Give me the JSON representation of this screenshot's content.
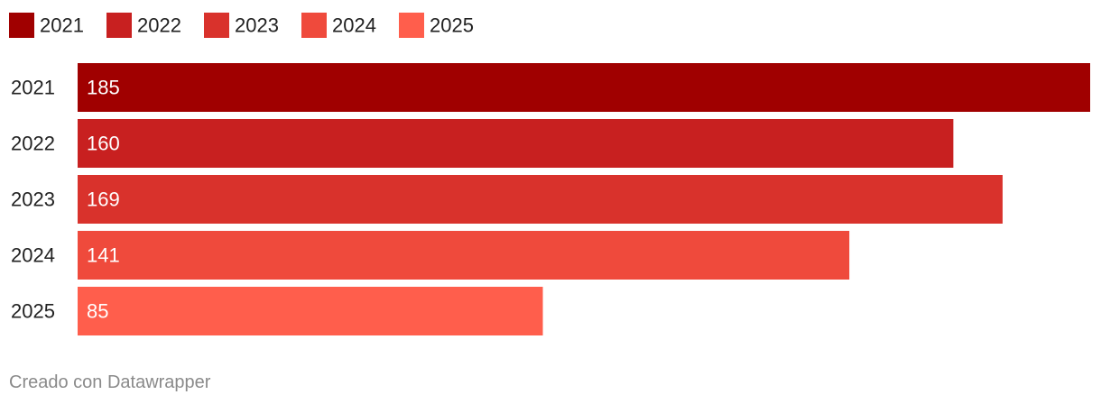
{
  "chart_data": {
    "type": "bar",
    "orientation": "horizontal",
    "categories": [
      "2021",
      "2022",
      "2023",
      "2024",
      "2025"
    ],
    "values": [
      185,
      160,
      169,
      141,
      85
    ],
    "colors": [
      "#a00000",
      "#c82020",
      "#d9322c",
      "#ef4a3c",
      "#ff5e4c"
    ],
    "legend": {
      "placement": "top-left",
      "entries": [
        "2021",
        "2022",
        "2023",
        "2024",
        "2025"
      ]
    },
    "value_labels": "inside-start",
    "grid": false,
    "xlim": [
      0,
      185
    ],
    "title": "",
    "xlabel": "",
    "ylabel": ""
  },
  "footer": {
    "credit": "Creado con Datawrapper"
  }
}
